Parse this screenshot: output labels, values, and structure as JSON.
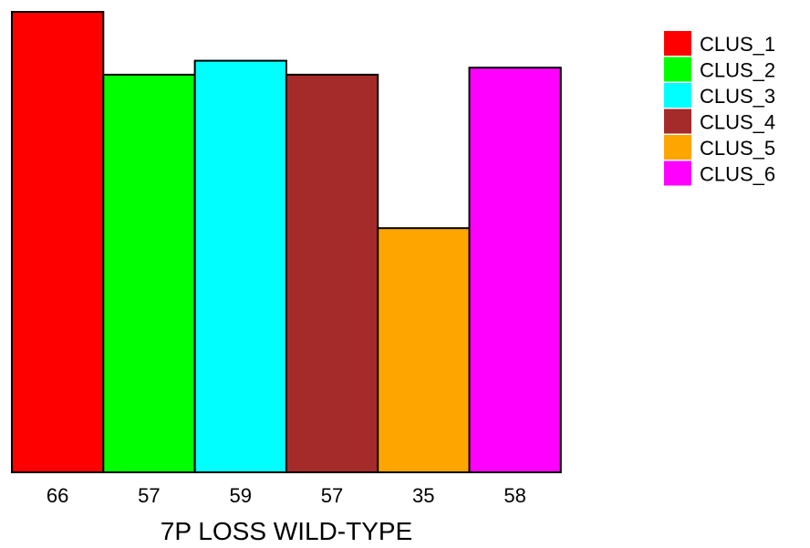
{
  "chart_data": {
    "type": "bar",
    "categories": [
      "CLUS_1",
      "CLUS_2",
      "CLUS_3",
      "CLUS_4",
      "CLUS_5",
      "CLUS_6"
    ],
    "values": [
      66,
      57,
      59,
      57,
      35,
      58
    ],
    "tick_labels": [
      "66",
      "57",
      "59",
      "57",
      "35",
      "58"
    ],
    "colors": [
      "#ff0000",
      "#00ff00",
      "#00ffff",
      "#a52a2a",
      "#ffa500",
      "#ff00ff"
    ],
    "xlabel": "7P LOSS WILD-TYPE",
    "ylabel": "",
    "ylim": [
      0,
      66
    ],
    "grid": false,
    "legend": {
      "placement": "top-right",
      "entries": [
        "CLUS_1",
        "CLUS_2",
        "CLUS_3",
        "CLUS_4",
        "CLUS_5",
        "CLUS_6"
      ]
    }
  }
}
